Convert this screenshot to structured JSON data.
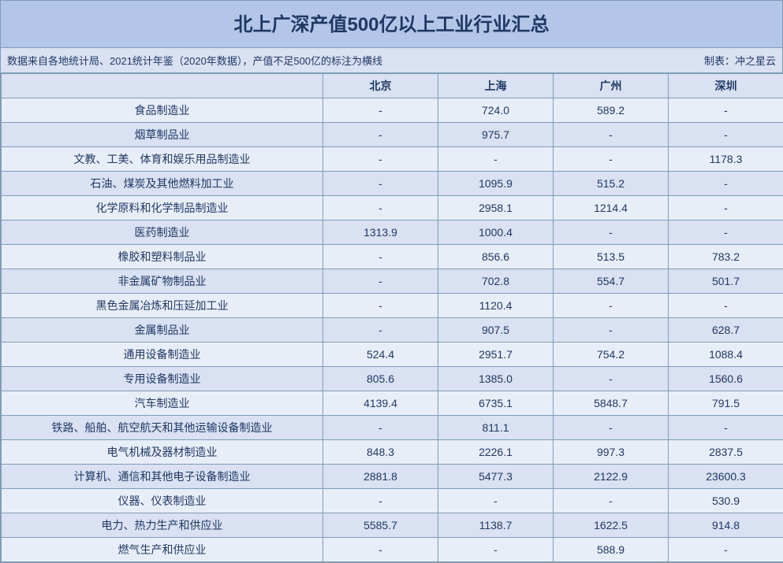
{
  "title": "北上广深产值500亿以上工业行业汇总",
  "subtitle_left": "数据来自各地统计局、2021统计年鉴（2020年数据），产值不足500亿的标注为横线",
  "subtitle_right": "制表：冲之星云",
  "columns": [
    "",
    "北京",
    "上海",
    "广州",
    "深圳"
  ],
  "rows": [
    {
      "label": "食品制造业",
      "values": [
        "-",
        "724.0",
        "589.2",
        "-"
      ]
    },
    {
      "label": "烟草制品业",
      "values": [
        "-",
        "975.7",
        "-",
        "-"
      ]
    },
    {
      "label": "文教、工美、体育和娱乐用品制造业",
      "values": [
        "-",
        "-",
        "-",
        "1178.3"
      ]
    },
    {
      "label": "石油、煤炭及其他燃料加工业",
      "values": [
        "-",
        "1095.9",
        "515.2",
        "-"
      ]
    },
    {
      "label": "化学原料和化学制品制造业",
      "values": [
        "-",
        "2958.1",
        "1214.4",
        "-"
      ]
    },
    {
      "label": "医药制造业",
      "values": [
        "1313.9",
        "1000.4",
        "-",
        "-"
      ]
    },
    {
      "label": "橡胶和塑料制品业",
      "values": [
        "-",
        "856.6",
        "513.5",
        "783.2"
      ]
    },
    {
      "label": "非金属矿物制品业",
      "values": [
        "-",
        "702.8",
        "554.7",
        "501.7"
      ]
    },
    {
      "label": "黑色金属冶炼和压延加工业",
      "values": [
        "-",
        "1120.4",
        "-",
        "-"
      ]
    },
    {
      "label": "金属制品业",
      "values": [
        "-",
        "907.5",
        "-",
        "628.7"
      ]
    },
    {
      "label": "通用设备制造业",
      "values": [
        "524.4",
        "2951.7",
        "754.2",
        "1088.4"
      ]
    },
    {
      "label": "专用设备制造业",
      "values": [
        "805.6",
        "1385.0",
        "-",
        "1560.6"
      ]
    },
    {
      "label": "汽车制造业",
      "values": [
        "4139.4",
        "6735.1",
        "5848.7",
        "791.5"
      ]
    },
    {
      "label": "铁路、船舶、航空航天和其他运输设备制造业",
      "values": [
        "-",
        "811.1",
        "-",
        "-"
      ]
    },
    {
      "label": "电气机械及器材制造业",
      "values": [
        "848.3",
        "2226.1",
        "997.3",
        "2837.5"
      ]
    },
    {
      "label": "计算机、通信和其他电子设备制造业",
      "values": [
        "2881.8",
        "5477.3",
        "2122.9",
        "23600.3"
      ]
    },
    {
      "label": "仪器、仪表制造业",
      "values": [
        "-",
        "-",
        "-",
        "530.9"
      ]
    },
    {
      "label": "电力、热力生产和供应业",
      "values": [
        "5585.7",
        "1138.7",
        "1622.5",
        "914.8"
      ]
    },
    {
      "label": "燃气生产和供应业",
      "values": [
        "-",
        "-",
        "588.9",
        "-"
      ]
    }
  ],
  "style": {
    "title_bg": "#b4c6e7",
    "header_bg": "#d9e1f2",
    "row_odd_bg": "#e8eef8",
    "row_even_bg": "#d9e1f2",
    "border_color": "#7f9cb8",
    "text_color": "#1f3864",
    "title_fontsize": 24,
    "cell_fontsize": 14,
    "subtitle_fontsize": 13
  }
}
